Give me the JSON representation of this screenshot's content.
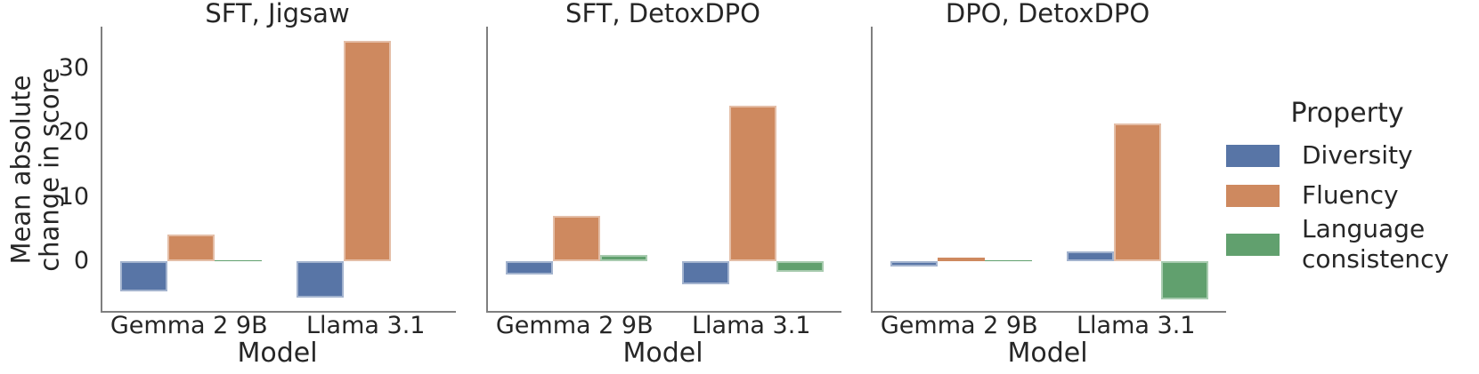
{
  "chart_data": {
    "type": "bar",
    "categories": [
      "Gemma 2 9B",
      "Llama 3.1"
    ],
    "xlabel": "Model",
    "ylabel": "Mean absolute\nchange in score",
    "yticks": [
      0,
      10,
      20,
      30
    ],
    "ylim": [
      -7.73,
      36.45
    ],
    "grid": false,
    "legend_position": "right-outside",
    "panels": [
      {
        "title": "SFT, Jigsaw",
        "series": [
          {
            "name": "Diversity",
            "values": [
              -4.7,
              -5.7
            ]
          },
          {
            "name": "Fluency",
            "values": [
              4.2,
              34.3
            ]
          },
          {
            "name": "Language consistency",
            "values": [
              0.2,
              0.0
            ]
          }
        ]
      },
      {
        "title": "SFT, DetoxDPO",
        "series": [
          {
            "name": "Diversity",
            "values": [
              -2.1,
              -3.6
            ]
          },
          {
            "name": "Fluency",
            "values": [
              7.1,
              24.1
            ]
          },
          {
            "name": "Language consistency",
            "values": [
              0.9,
              -1.7
            ]
          }
        ]
      },
      {
        "title": "DPO, DetoxDPO",
        "series": [
          {
            "name": "Diversity",
            "values": [
              -0.8,
              1.5
            ]
          },
          {
            "name": "Fluency",
            "values": [
              0.5,
              21.4
            ]
          },
          {
            "name": "Language consistency",
            "values": [
              0.2,
              -5.9
            ]
          }
        ]
      }
    ],
    "legend": {
      "title": "Property",
      "entries": [
        {
          "label": "Diversity",
          "color": "#5875A6"
        },
        {
          "label": "Fluency",
          "color": "#CE895F"
        },
        {
          "label": "Language\nconsistency",
          "color": "#61A06E"
        }
      ]
    }
  }
}
